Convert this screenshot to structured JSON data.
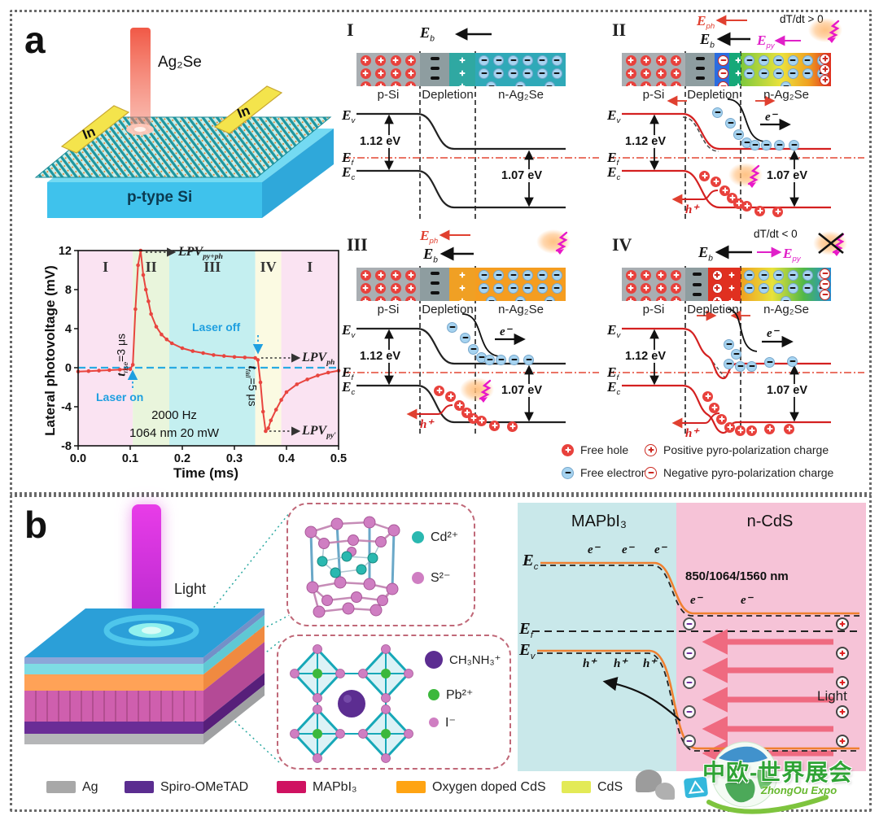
{
  "panel_a": {
    "label": "a",
    "schematic": {
      "material": "Ag₂Se",
      "electrode_left": "In",
      "electrode_right": "In",
      "substrate": "p-type Si"
    },
    "graph": {
      "ylabel": "Lateral photovoltage (mV)",
      "xlabel": "Time (ms)",
      "laser_on": "Laser on",
      "laser_off": "Laser off",
      "freq": "2000 Hz",
      "power": "1064 nm 20 mW",
      "t_rise": {
        "main": "t",
        "sub": "rise",
        "rest": "=3 μs"
      },
      "t_fall": {
        "main": "t",
        "sub": "fall",
        "rest": "=5 μs"
      },
      "lpv_pyph": {
        "main": "LPV",
        "sub": "py+ph"
      },
      "lpv_ph": {
        "main": "LPV",
        "sub": "ph"
      },
      "lpv_py": {
        "main": "LPV",
        "sub": "py′"
      }
    },
    "diagrams": {
      "common": {
        "p_si": "p-Si",
        "depletion": "Depletion",
        "n_agse": "n-Ag₂Se",
        "ev": {
          "main": "E",
          "sub": "v"
        },
        "ef": {
          "main": "E",
          "sub": "f"
        },
        "ec": {
          "main": "E",
          "sub": "c"
        },
        "eb": {
          "main": "E",
          "sub": "b"
        },
        "eph": {
          "main": "E",
          "sub": "ph"
        },
        "epy": {
          "main": "E",
          "sub": "py"
        },
        "gap_si": "1.12 eV",
        "gap_ag": "1.07 eV",
        "electron": "e⁻",
        "hole": "h⁺",
        "dt_pos": "dT/dt > 0",
        "dt_neg": "dT/dt < 0"
      },
      "items": [
        {
          "numeral": "I"
        },
        {
          "numeral": "II"
        },
        {
          "numeral": "III"
        },
        {
          "numeral": "IV"
        }
      ]
    },
    "legend": {
      "free_hole": "Free hole",
      "free_electron": "Free electron",
      "pos_pyro": "Positive pyro-polarization charge",
      "neg_pyro": "Negative pyro-polarization charge"
    }
  },
  "panel_b": {
    "label": "b",
    "light": "Light",
    "inset_cds": {
      "ions": [
        {
          "label": "Cd²⁺",
          "color": "#2ab8b0"
        },
        {
          "label": "S²⁻",
          "color": "#cf7ec2"
        }
      ]
    },
    "inset_mapbi": {
      "ions": [
        {
          "label": "CH₃NH₃⁺",
          "color": "#5c2d91"
        },
        {
          "label": "Pb²⁺",
          "color": "#3cb83c"
        },
        {
          "label": "I⁻",
          "color": "#cf7ec2"
        }
      ]
    },
    "band": {
      "left": "MAPbI₃",
      "right": "n-CdS",
      "ec": {
        "main": "E",
        "sub": "c"
      },
      "ef": {
        "main": "E",
        "sub": "f"
      },
      "ev": {
        "main": "E",
        "sub": "v"
      },
      "wavelengths": "850/1064/1560 nm",
      "electron": "e⁻",
      "hole": "h⁺",
      "light": "Light"
    },
    "legend": [
      {
        "label": "Ag",
        "color": "#a8a8a8"
      },
      {
        "label": "Spiro-OMeTAD",
        "color": "#5b2d90"
      },
      {
        "label": "MAPbI₃",
        "color": "#cf1261"
      },
      {
        "label": "Oxygen doped CdS",
        "color": "#ffa413"
      },
      {
        "label": "CdS",
        "color": "#e3ea56"
      }
    ]
  },
  "watermark": {
    "title": "中欧-世界展会",
    "subtitle": "ZhongOu Expo"
  },
  "chart_data": {
    "type": "line",
    "title": "",
    "xlabel": "Time (ms)",
    "ylabel": "Lateral photovoltage (mV)",
    "xlim": [
      0.0,
      0.5
    ],
    "ylim": [
      -8,
      12
    ],
    "xticks": [
      "0.0",
      "0.1",
      "0.2",
      "0.3",
      "0.4",
      "0.5"
    ],
    "yticks": [
      "-8",
      "-4",
      "0",
      "4",
      "8",
      "12"
    ],
    "grid": false,
    "regions": [
      {
        "label": "I",
        "from": 0.0,
        "to": 0.105,
        "color": "#fae3f2"
      },
      {
        "label": "II",
        "from": 0.105,
        "to": 0.175,
        "color": "#e9f5dc"
      },
      {
        "label": "III",
        "from": 0.175,
        "to": 0.34,
        "color": "#c4eff0"
      },
      {
        "label": "IV",
        "from": 0.34,
        "to": 0.39,
        "color": "#fbfae2"
      },
      {
        "label": "I",
        "from": 0.39,
        "to": 0.5,
        "color": "#fae3f2"
      }
    ],
    "zero_line": {
      "style": "dashed",
      "color": "#29abe2"
    },
    "annotations": [
      "t_rise=3 μs",
      "LPV_py+ph",
      "Laser off",
      "LPV_ph",
      "Laser on",
      "2000 Hz",
      "1064 nm 20 mW",
      "t_fall=5 μs",
      "LPV_py′"
    ],
    "series": [
      {
        "name": "LPV",
        "color": "#e8453f",
        "x": [
          0,
          0.02,
          0.04,
          0.06,
          0.08,
          0.1,
          0.105,
          0.11,
          0.115,
          0.12,
          0.125,
          0.13,
          0.135,
          0.14,
          0.15,
          0.16,
          0.17,
          0.18,
          0.2,
          0.22,
          0.24,
          0.26,
          0.28,
          0.3,
          0.32,
          0.34,
          0.345,
          0.35,
          0.355,
          0.36,
          0.365,
          0.37,
          0.38,
          0.39,
          0.4,
          0.42,
          0.44,
          0.46,
          0.48,
          0.5
        ],
        "y": [
          -0.4,
          -0.35,
          -0.3,
          -0.25,
          -0.2,
          -0.15,
          0.3,
          6,
          10.5,
          12,
          9.5,
          8,
          6.8,
          5.5,
          4.2,
          3.4,
          2.9,
          2.5,
          2,
          1.7,
          1.5,
          1.3,
          1.2,
          1.1,
          1.05,
          1,
          0.8,
          -1.5,
          -4.5,
          -6.5,
          -6.2,
          -5.4,
          -4.3,
          -3.3,
          -2.5,
          -1.7,
          -1.2,
          -0.8,
          -0.5,
          -0.3
        ]
      }
    ]
  }
}
